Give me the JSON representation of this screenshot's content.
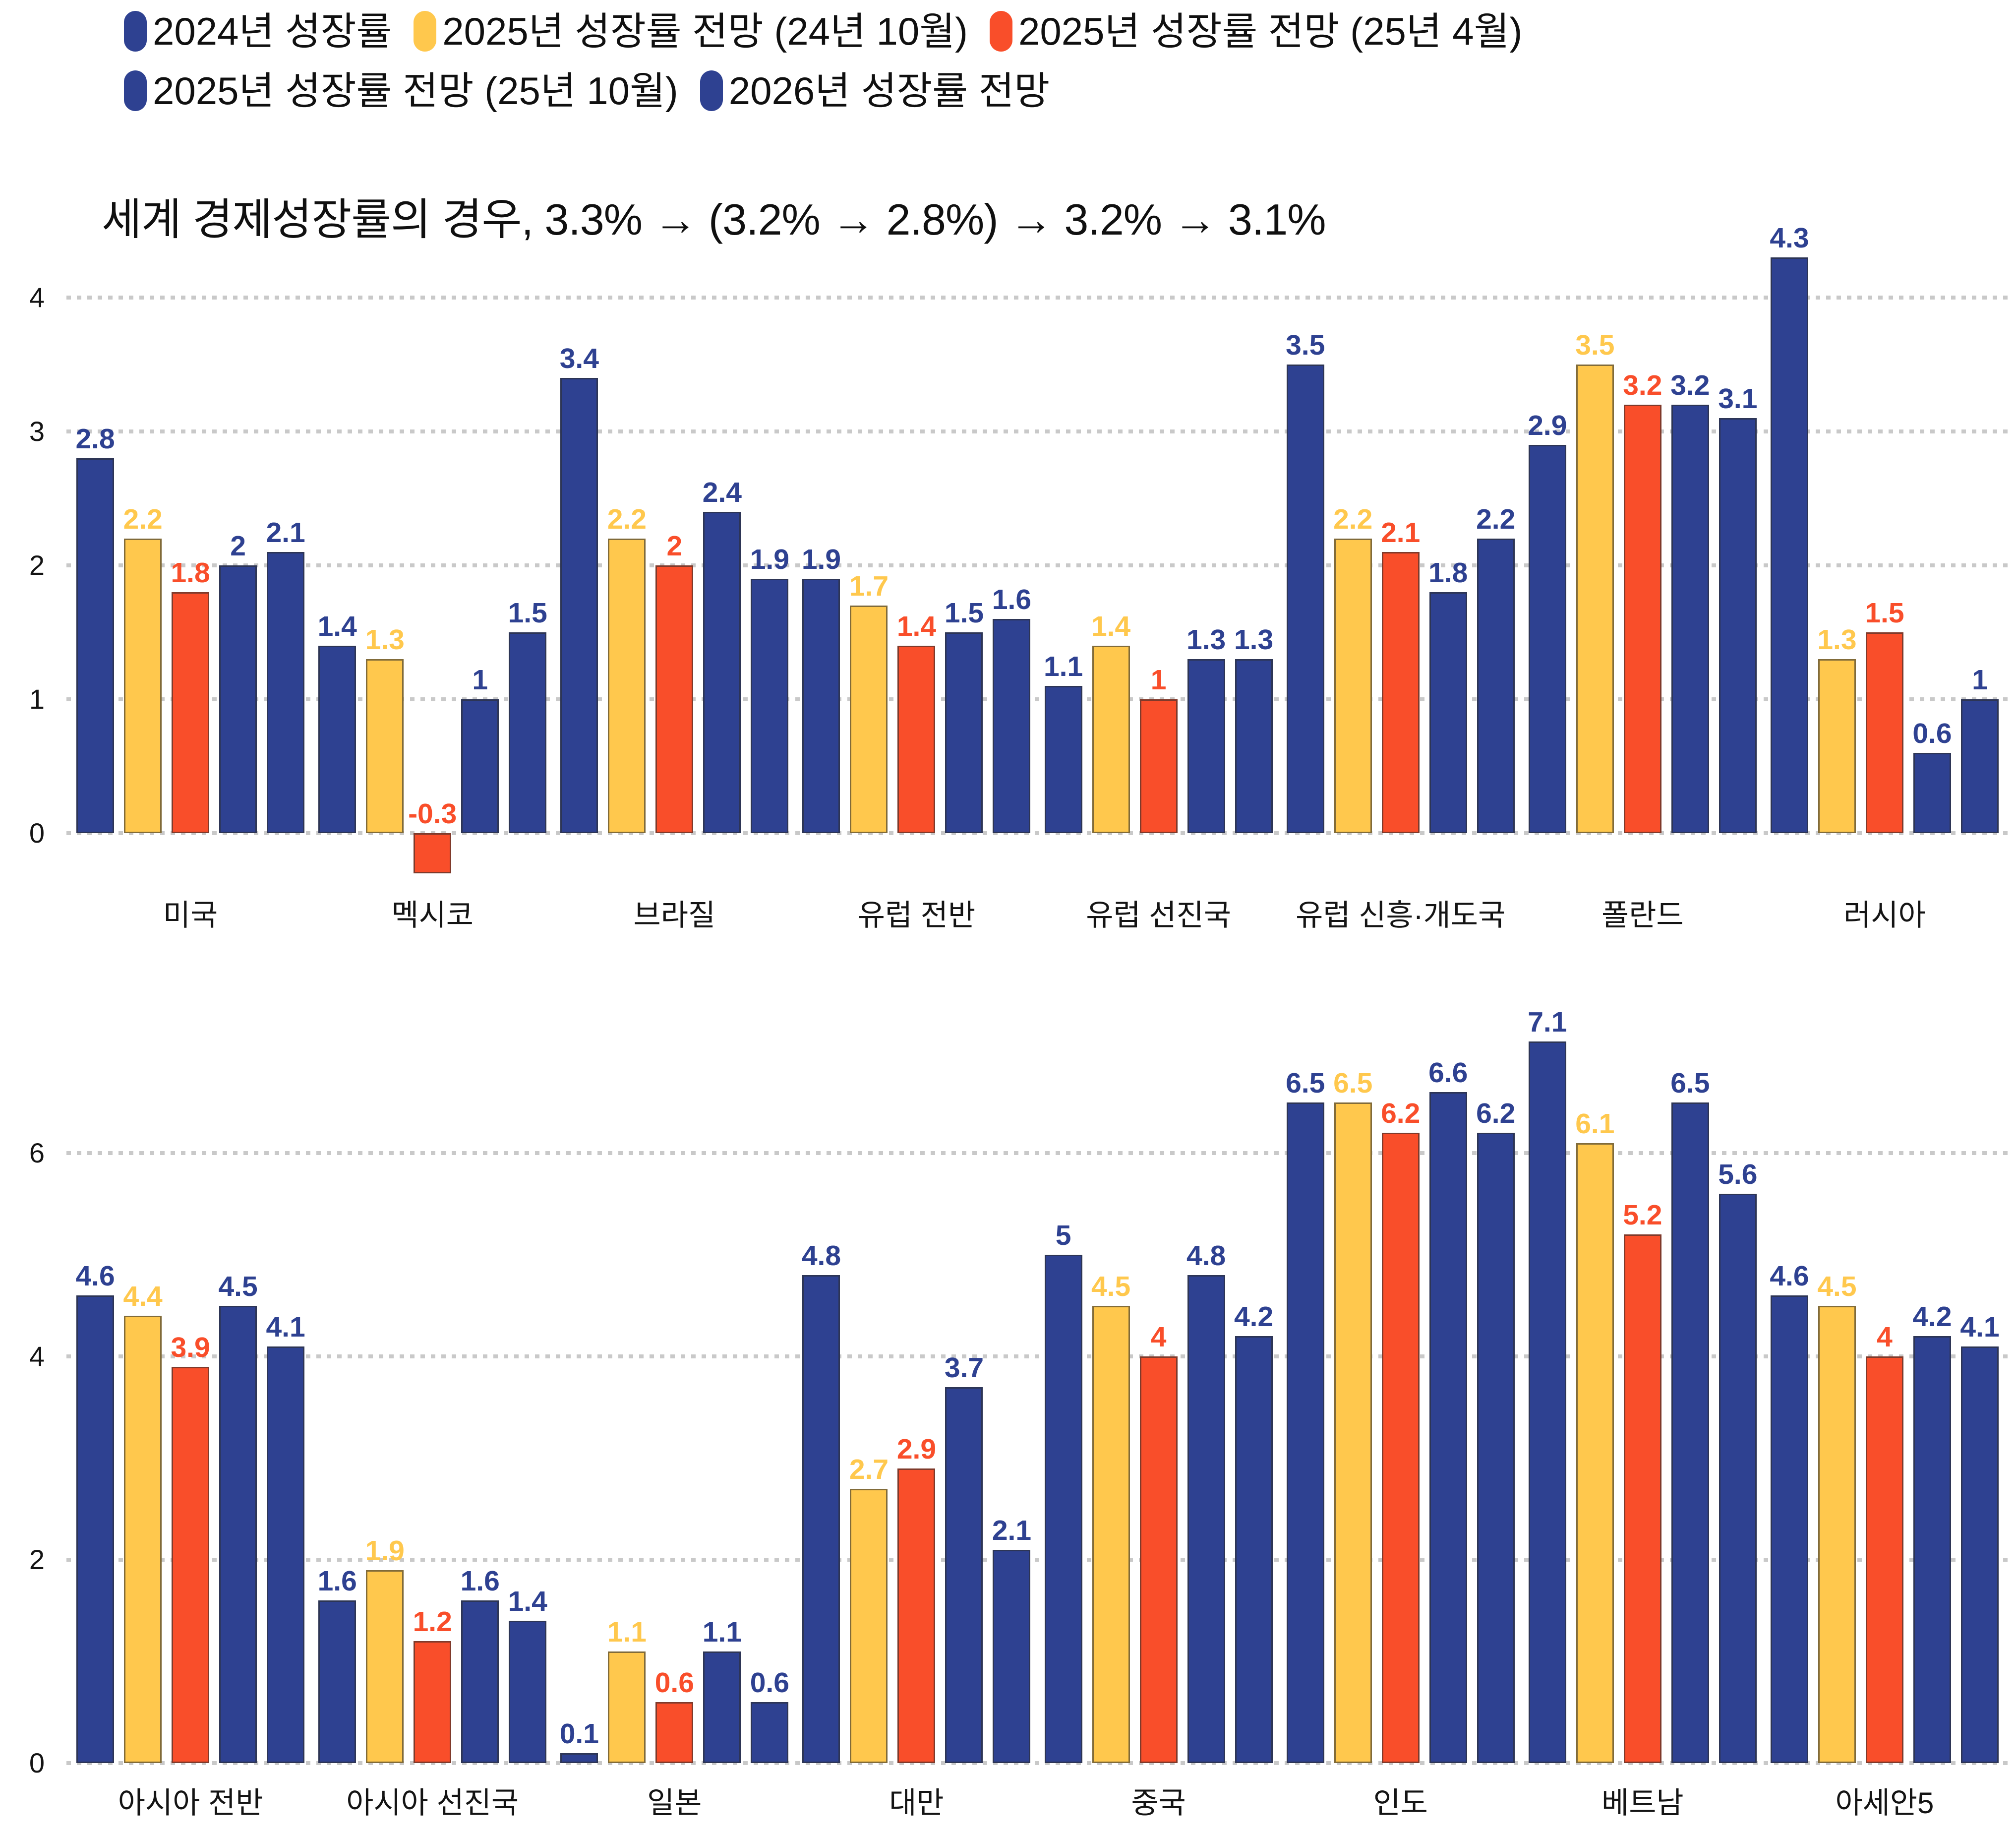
{
  "title": "세계 경제성장률의 경우, 3.3% → (3.2% → 2.8%) → 3.2% → 3.1%",
  "colors": {
    "navy": "#2e4191",
    "yellow": "#ffc84d",
    "red": "#f94e2a",
    "gridline": "#c9c9c9",
    "text": "#141414"
  },
  "legend": {
    "items": [
      {
        "label": "2024년 성장률",
        "color": "#2e4191"
      },
      {
        "label": "2025년 성장률 전망 (24년 10월)",
        "color": "#ffc84d"
      },
      {
        "label": "2025년 성장률 전망 (25년 4월)",
        "color": "#f94e2a"
      },
      {
        "label": "2025년 성장률 전망 (25년 10월)",
        "color": "#2e4191"
      },
      {
        "label": "2026년 성장률 전망",
        "color": "#2e4191"
      }
    ]
  },
  "chart_data": [
    {
      "type": "bar",
      "panel": "top",
      "title": "",
      "xlabel": "",
      "ylabel": "",
      "yticks": [
        0,
        1,
        2,
        3,
        4
      ],
      "ylim": [
        -0.5,
        4.5
      ],
      "grid": "horizontal-dotted",
      "legend_position": "top",
      "categories": [
        "미국",
        "멕시코",
        "브라질",
        "유럽 전반",
        "유럽 선진국",
        "유럽 신흥·개도국",
        "폴란드",
        "러시아"
      ],
      "series": [
        {
          "name": "2024년 성장률",
          "color": "#2e4191",
          "values": [
            2.8,
            1.4,
            3.4,
            1.9,
            1.1,
            3.5,
            2.9,
            4.3
          ]
        },
        {
          "name": "2025년 성장률 전망 (24년 10월)",
          "color": "#ffc84d",
          "values": [
            2.2,
            1.3,
            2.2,
            1.7,
            1.4,
            2.2,
            3.5,
            1.3
          ]
        },
        {
          "name": "2025년 성장률 전망 (25년 4월)",
          "color": "#f94e2a",
          "values": [
            1.8,
            -0.3,
            2,
            1.4,
            1,
            2.1,
            3.2,
            1.5
          ]
        },
        {
          "name": "2025년 성장률 전망 (25년 10월)",
          "color": "#2e4191",
          "values": [
            2,
            1,
            2.4,
            1.5,
            1.3,
            1.8,
            3.2,
            0.6
          ]
        },
        {
          "name": "2026년 성장률 전망",
          "color": "#2e4191",
          "values": [
            2.1,
            1.5,
            1.9,
            1.6,
            1.3,
            2.2,
            3.1,
            1
          ]
        }
      ]
    },
    {
      "type": "bar",
      "panel": "bottom",
      "title": "",
      "xlabel": "",
      "ylabel": "",
      "yticks": [
        0,
        2,
        4,
        6
      ],
      "ylim": [
        0,
        7.6
      ],
      "grid": "horizontal-dotted",
      "legend_position": "none",
      "categories": [
        "아시아 전반",
        "아시아 선진국",
        "일본",
        "대만",
        "중국",
        "인도",
        "베트남",
        "아세안5"
      ],
      "series": [
        {
          "name": "2024년 성장률",
          "color": "#2e4191",
          "values": [
            4.6,
            1.6,
            0.1,
            4.8,
            5,
            6.5,
            7.1,
            4.6
          ]
        },
        {
          "name": "2025년 성장률 전망 (24년 10월)",
          "color": "#ffc84d",
          "values": [
            4.4,
            1.9,
            1.1,
            2.7,
            4.5,
            6.5,
            6.1,
            4.5
          ]
        },
        {
          "name": "2025년 성장률 전망 (25년 4월)",
          "color": "#f94e2a",
          "values": [
            3.9,
            1.2,
            0.6,
            2.9,
            4,
            6.2,
            5.2,
            4
          ]
        },
        {
          "name": "2025년 성장률 전망 (25년 10월)",
          "color": "#2e4191",
          "values": [
            4.5,
            1.6,
            1.1,
            3.7,
            4.8,
            6.6,
            6.5,
            4.2
          ]
        },
        {
          "name": "2026년 성장률 전망",
          "color": "#2e4191",
          "values": [
            4.1,
            1.4,
            0.6,
            2.1,
            4.2,
            6.2,
            5.6,
            4.1
          ]
        }
      ]
    }
  ]
}
